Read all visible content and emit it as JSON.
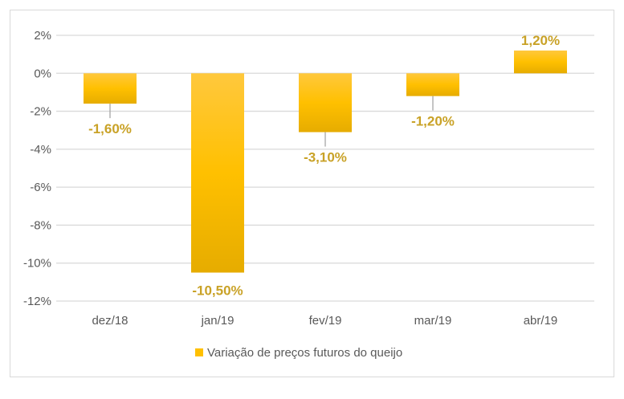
{
  "chart_data": {
    "type": "bar",
    "categories": [
      "dez/18",
      "jan/19",
      "fev/19",
      "mar/19",
      "abr/19"
    ],
    "series": [
      {
        "name": "Variação de preços futuros do queijo",
        "values": [
          -1.6,
          -10.5,
          -3.1,
          -1.2,
          1.2
        ]
      }
    ],
    "data_labels": [
      "-1,60%",
      "-10,50%",
      "-3,10%",
      "-1,20%",
      "1,20%"
    ],
    "y_ticks": [
      2,
      0,
      -2,
      -4,
      -6,
      -8,
      -10,
      -12
    ],
    "y_tick_labels": [
      "2%",
      "0%",
      "-2%",
      "-4%",
      "-6%",
      "-8%",
      "-10%",
      "-12%"
    ],
    "ylim": [
      -12,
      2
    ],
    "grid": true,
    "legend": "bottom",
    "colors": {
      "bar": "#FFC000",
      "bar_dark": "#E6AC00",
      "label": "#C9A227",
      "grid": "#D9D9D9",
      "text": "#595959"
    }
  }
}
